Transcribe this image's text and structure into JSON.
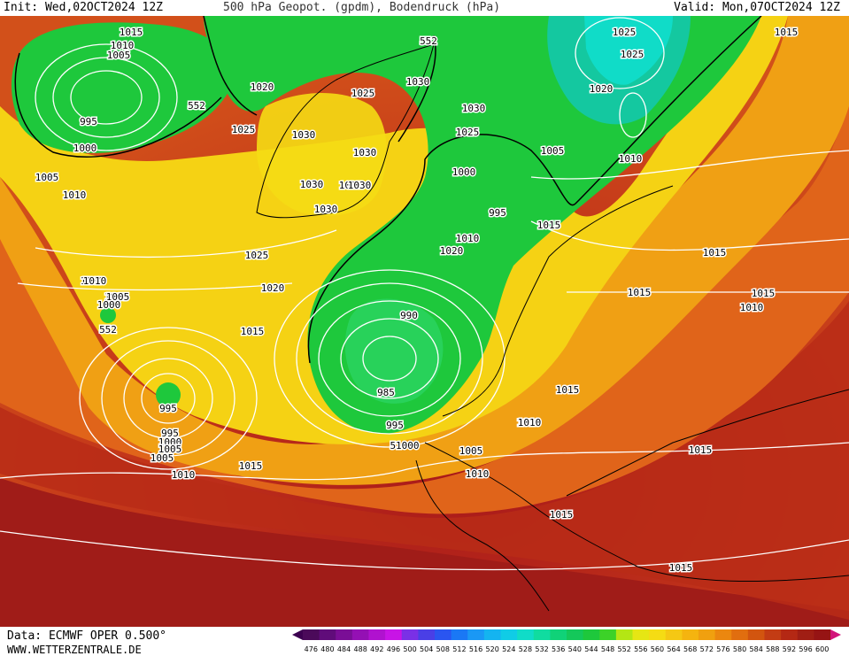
{
  "header": {
    "init": "Init: Wed,02OCT2024 12Z",
    "title": "500 hPa Geopot. (gpdm), Bodendruck (hPa)",
    "valid": "Valid: Mon,07OCT2024 12Z"
  },
  "footer": {
    "source": "Data: ECMWF OPER 0.500°",
    "site": "WWW.WETTERZENTRALE.DE"
  },
  "colorbar": {
    "values": [
      "476",
      "480",
      "484",
      "488",
      "492",
      "496",
      "500",
      "504",
      "508",
      "512",
      "516",
      "520",
      "524",
      "528",
      "532",
      "536",
      "540",
      "544",
      "548",
      "552",
      "556",
      "560",
      "564",
      "568",
      "572",
      "576",
      "580",
      "584",
      "588",
      "592",
      "596",
      "600"
    ],
    "colors": [
      "#4b0a5a",
      "#600c7a",
      "#7a0e96",
      "#9410b4",
      "#b012cf",
      "#c814e6",
      "#7a30e6",
      "#4a3fe6",
      "#2a55f0",
      "#1a78f5",
      "#1a98f5",
      "#14b4f0",
      "#10cce6",
      "#10dcc8",
      "#10dca0",
      "#10d278",
      "#14c85a",
      "#1ec83c",
      "#3cd228",
      "#b4e614",
      "#e6e614",
      "#f5dc14",
      "#f5c814",
      "#f5b40f",
      "#f0a00f",
      "#eb870f",
      "#e16e0f",
      "#d2550f",
      "#c33c14",
      "#b42814",
      "#a01e14",
      "#961414"
    ],
    "end_left_color": "#3c0050",
    "end_right_color": "#d2147a"
  },
  "pressure_labels": [
    {
      "text": "1015"
    },
    {
      "text": "1010"
    },
    {
      "text": "1005"
    },
    {
      "text": "995"
    },
    {
      "text": "1000"
    },
    {
      "text": "552"
    },
    {
      "text": "552"
    },
    {
      "text": "1020"
    },
    {
      "text": "1025"
    },
    {
      "text": "1030"
    },
    {
      "text": "1030"
    },
    {
      "text": "1025"
    },
    {
      "text": "1025"
    },
    {
      "text": "1030"
    },
    {
      "text": "1030"
    },
    {
      "text": "1030"
    },
    {
      "text": "1025"
    },
    {
      "text": "1030"
    },
    {
      "text": "1030"
    },
    {
      "text": "1025"
    },
    {
      "text": "1020"
    },
    {
      "text": "1010"
    },
    {
      "text": "1005"
    },
    {
      "text": "1000"
    },
    {
      "text": "995"
    },
    {
      "text": "1000"
    },
    {
      "text": "1005"
    },
    {
      "text": "1020"
    },
    {
      "text": "1010"
    },
    {
      "text": "1015"
    },
    {
      "text": "1025"
    },
    {
      "text": "1005"
    },
    {
      "text": "1010"
    },
    {
      "text": "1025"
    },
    {
      "text": "1020"
    },
    {
      "text": "1010"
    },
    {
      "text": "1005"
    },
    {
      "text": "1000"
    },
    {
      "text": "552"
    },
    {
      "text": "1015"
    },
    {
      "text": "990"
    },
    {
      "text": "985"
    },
    {
      "text": "995"
    },
    {
      "text": "51000"
    },
    {
      "text": "1005"
    },
    {
      "text": "1015"
    },
    {
      "text": "1010"
    },
    {
      "text": "995"
    },
    {
      "text": "995"
    },
    {
      "text": "1000"
    },
    {
      "text": "1005"
    },
    {
      "text": "1010"
    },
    {
      "text": "1015"
    },
    {
      "text": "1015"
    },
    {
      "text": "1015"
    },
    {
      "text": "1015"
    },
    {
      "text": "1010"
    },
    {
      "text": "1015"
    },
    {
      "text": "1010"
    },
    {
      "text": "1005"
    },
    {
      "text": "1010"
    },
    {
      "text": "1015"
    },
    {
      "text": "1015"
    },
    {
      "text": "1015"
    }
  ]
}
